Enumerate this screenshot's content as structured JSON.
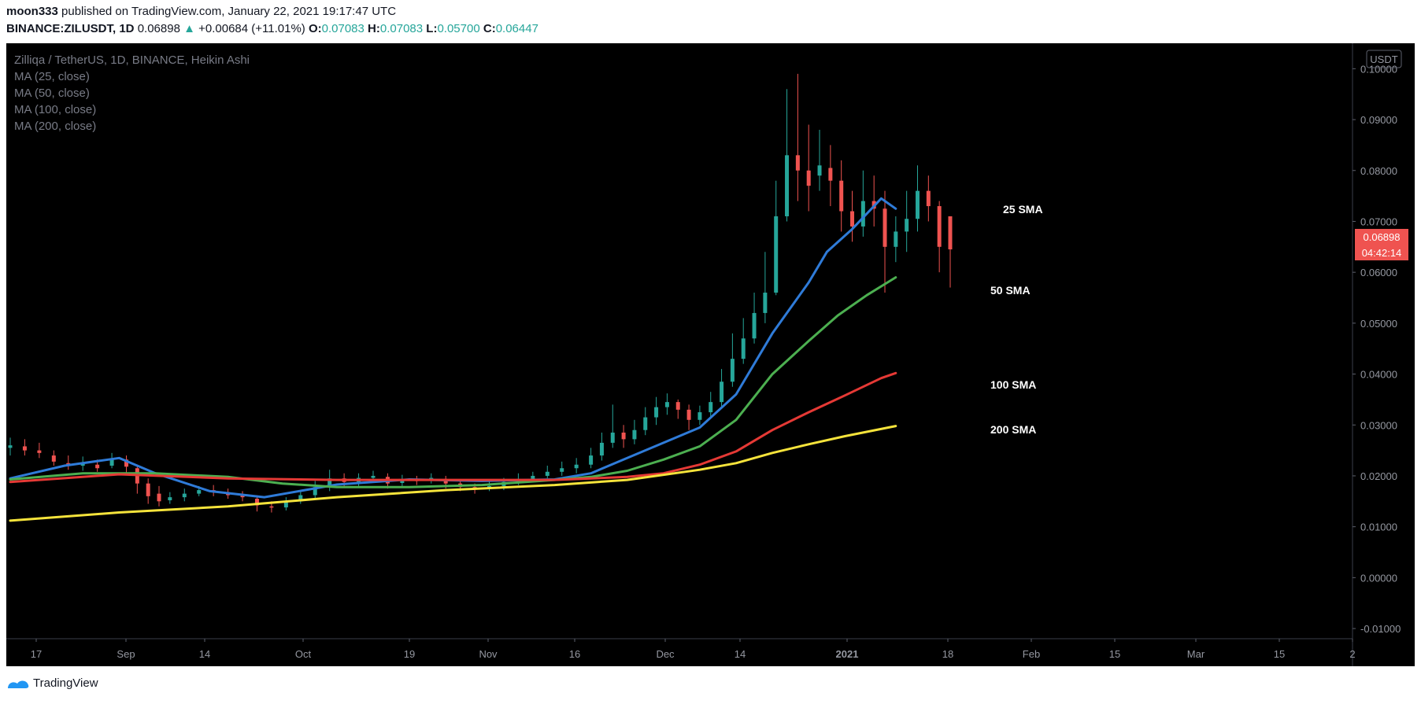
{
  "header": {
    "username": "moon333",
    "published_text": "published on TradingView.com, January 22, 2021 19:17:47 UTC",
    "symbol": "BINANCE:ZILUSDT, 1D",
    "last": "0.06898",
    "change_arrow": "▲",
    "change": "+0.00684 (+11.01%)",
    "o_label": "O:",
    "o_val": "0.07083",
    "h_label": "H:",
    "h_val": "0.07083",
    "l_label": "L:",
    "l_val": "0.05700",
    "c_label": "C:",
    "c_val": "0.06447"
  },
  "legend": {
    "title": "Zilliqa / TetherUS, 1D, BINANCE, Heikin Ashi",
    "ma_lines": [
      "MA (25, close)",
      "MA (50, close)",
      "MA (100, close)",
      "MA (200, close)"
    ]
  },
  "currency_button": "USDT",
  "price_tag": {
    "price": "0.06898",
    "countdown": "04:42:14"
  },
  "footer": {
    "brand": "TradingView"
  },
  "colors": {
    "background": "#000000",
    "up": "#26a69a",
    "down": "#ef5350",
    "sma25": "#2f7bd8",
    "sma50": "#4caf50",
    "sma100": "#e53935",
    "sma200": "#f5e33b"
  },
  "chart_data": {
    "type": "line",
    "candle_style": "heikin ashi",
    "ylim": [
      -0.012,
      0.105
    ],
    "y_ticks": [
      "0.10000",
      "0.09000",
      "0.08000",
      "0.07000",
      "0.06000",
      "0.05000",
      "0.04000",
      "0.03000",
      "0.02000",
      "0.01000",
      "0.00000",
      "-0.01000"
    ],
    "x_ticks": [
      "17",
      "Sep",
      "14",
      "Oct",
      "19",
      "Nov",
      "16",
      "Dec",
      "14",
      "2021",
      "18",
      "Feb",
      "15",
      "Mar",
      "15",
      "2"
    ],
    "annotations": [
      "25 SMA",
      "50 SMA",
      "100 SMA",
      "200 SMA"
    ],
    "series": [
      {
        "name": "MA (25, close)",
        "color_key": "sma25",
        "points": [
          [
            0,
            0.0195
          ],
          [
            15,
            0.022
          ],
          [
            30,
            0.0235
          ],
          [
            40,
            0.0205
          ],
          [
            55,
            0.017
          ],
          [
            70,
            0.0158
          ],
          [
            90,
            0.0183
          ],
          [
            110,
            0.0193
          ],
          [
            130,
            0.019
          ],
          [
            150,
            0.0193
          ],
          [
            160,
            0.0205
          ],
          [
            170,
            0.0235
          ],
          [
            180,
            0.0265
          ],
          [
            190,
            0.0295
          ],
          [
            200,
            0.036
          ],
          [
            210,
            0.048
          ],
          [
            220,
            0.058
          ],
          [
            225,
            0.064
          ],
          [
            232,
            0.0685
          ],
          [
            240,
            0.0745
          ],
          [
            244,
            0.0725
          ]
        ]
      },
      {
        "name": "MA (50, close)",
        "color_key": "sma50",
        "points": [
          [
            0,
            0.0193
          ],
          [
            20,
            0.0205
          ],
          [
            40,
            0.0205
          ],
          [
            60,
            0.0198
          ],
          [
            75,
            0.0185
          ],
          [
            90,
            0.0178
          ],
          [
            110,
            0.0178
          ],
          [
            130,
            0.0182
          ],
          [
            150,
            0.0192
          ],
          [
            160,
            0.0198
          ],
          [
            170,
            0.021
          ],
          [
            180,
            0.0232
          ],
          [
            190,
            0.0258
          ],
          [
            200,
            0.031
          ],
          [
            210,
            0.04
          ],
          [
            220,
            0.0465
          ],
          [
            228,
            0.0515
          ],
          [
            236,
            0.0555
          ],
          [
            244,
            0.059
          ]
        ]
      },
      {
        "name": "MA (100, close)",
        "color_key": "sma100",
        "points": [
          [
            0,
            0.0188
          ],
          [
            30,
            0.0203
          ],
          [
            60,
            0.0195
          ],
          [
            90,
            0.0192
          ],
          [
            120,
            0.0192
          ],
          [
            150,
            0.0192
          ],
          [
            170,
            0.0198
          ],
          [
            180,
            0.0205
          ],
          [
            190,
            0.0222
          ],
          [
            200,
            0.0248
          ],
          [
            210,
            0.029
          ],
          [
            220,
            0.0325
          ],
          [
            230,
            0.0358
          ],
          [
            240,
            0.0392
          ],
          [
            244,
            0.0402
          ]
        ]
      },
      {
        "name": "MA (200, close)",
        "color_key": "sma200",
        "points": [
          [
            0,
            0.0112
          ],
          [
            30,
            0.0128
          ],
          [
            60,
            0.014
          ],
          [
            90,
            0.0158
          ],
          [
            120,
            0.0172
          ],
          [
            150,
            0.0182
          ],
          [
            170,
            0.0192
          ],
          [
            190,
            0.0212
          ],
          [
            200,
            0.0225
          ],
          [
            210,
            0.0245
          ],
          [
            220,
            0.0262
          ],
          [
            230,
            0.0278
          ],
          [
            244,
            0.0298
          ]
        ]
      }
    ],
    "candles": [
      [
        0,
        0.0255,
        0.026,
        0.0275,
        0.024
      ],
      [
        4,
        0.0258,
        0.025,
        0.0272,
        0.024
      ],
      [
        8,
        0.025,
        0.0245,
        0.0265,
        0.0235
      ],
      [
        12,
        0.024,
        0.0228,
        0.025,
        0.022
      ],
      [
        16,
        0.0225,
        0.022,
        0.024,
        0.0212
      ],
      [
        20,
        0.022,
        0.0225,
        0.0238,
        0.021
      ],
      [
        24,
        0.0222,
        0.0215,
        0.0232,
        0.0208
      ],
      [
        28,
        0.022,
        0.0232,
        0.0245,
        0.0215
      ],
      [
        32,
        0.0232,
        0.0218,
        0.024,
        0.0205
      ],
      [
        35,
        0.0215,
        0.0185,
        0.0222,
        0.0165
      ],
      [
        38,
        0.0185,
        0.016,
        0.0195,
        0.0145
      ],
      [
        41,
        0.0165,
        0.015,
        0.018,
        0.014
      ],
      [
        44,
        0.0152,
        0.0158,
        0.0168,
        0.0145
      ],
      [
        48,
        0.0158,
        0.0165,
        0.0175,
        0.015
      ],
      [
        52,
        0.0165,
        0.0172,
        0.018,
        0.016
      ],
      [
        56,
        0.0172,
        0.0168,
        0.0182,
        0.016
      ],
      [
        60,
        0.0168,
        0.0162,
        0.0175,
        0.0155
      ],
      [
        64,
        0.0162,
        0.0158,
        0.017,
        0.015
      ],
      [
        68,
        0.0155,
        0.0142,
        0.0162,
        0.013
      ],
      [
        72,
        0.014,
        0.0138,
        0.015,
        0.0128
      ],
      [
        76,
        0.0138,
        0.015,
        0.0158,
        0.0132
      ],
      [
        80,
        0.015,
        0.0162,
        0.017,
        0.0145
      ],
      [
        84,
        0.0162,
        0.0178,
        0.019,
        0.0155
      ],
      [
        88,
        0.0178,
        0.0195,
        0.0212,
        0.017
      ],
      [
        92,
        0.0195,
        0.0188,
        0.0205,
        0.0178
      ],
      [
        96,
        0.0188,
        0.0196,
        0.0205,
        0.018
      ],
      [
        100,
        0.0196,
        0.02,
        0.021,
        0.0188
      ],
      [
        104,
        0.0198,
        0.0185,
        0.0205,
        0.0175
      ],
      [
        108,
        0.0186,
        0.0192,
        0.0202,
        0.018
      ],
      [
        112,
        0.0192,
        0.019,
        0.02,
        0.0182
      ],
      [
        116,
        0.019,
        0.0196,
        0.0205,
        0.0185
      ],
      [
        120,
        0.0194,
        0.0185,
        0.02,
        0.0175
      ],
      [
        124,
        0.0185,
        0.0178,
        0.0192,
        0.017
      ],
      [
        128,
        0.0178,
        0.0175,
        0.0185,
        0.0165
      ],
      [
        132,
        0.0175,
        0.018,
        0.019,
        0.017
      ],
      [
        136,
        0.018,
        0.0188,
        0.0196,
        0.0172
      ],
      [
        140,
        0.0188,
        0.0194,
        0.0205,
        0.0182
      ],
      [
        144,
        0.0194,
        0.02,
        0.0208,
        0.0188
      ],
      [
        148,
        0.02,
        0.0208,
        0.022,
        0.0195
      ],
      [
        152,
        0.0208,
        0.0215,
        0.0228,
        0.02
      ],
      [
        156,
        0.0215,
        0.0222,
        0.0235,
        0.0205
      ],
      [
        160,
        0.0222,
        0.024,
        0.0255,
        0.0215
      ],
      [
        163,
        0.024,
        0.0265,
        0.0285,
        0.023
      ],
      [
        166,
        0.0265,
        0.0285,
        0.034,
        0.0255
      ],
      [
        169,
        0.0285,
        0.0272,
        0.03,
        0.0255
      ],
      [
        172,
        0.0272,
        0.029,
        0.031,
        0.0262
      ],
      [
        175,
        0.029,
        0.0315,
        0.0335,
        0.028
      ],
      [
        178,
        0.0315,
        0.0335,
        0.0355,
        0.03
      ],
      [
        181,
        0.0335,
        0.0345,
        0.0362,
        0.032
      ],
      [
        184,
        0.0345,
        0.033,
        0.035,
        0.0312
      ],
      [
        187,
        0.033,
        0.031,
        0.034,
        0.029
      ],
      [
        190,
        0.031,
        0.0325,
        0.0338,
        0.03
      ],
      [
        193,
        0.0325,
        0.0345,
        0.0365,
        0.0315
      ],
      [
        196,
        0.0345,
        0.0385,
        0.041,
        0.0335
      ],
      [
        199,
        0.0385,
        0.043,
        0.048,
        0.0375
      ],
      [
        202,
        0.043,
        0.047,
        0.051,
        0.042
      ],
      [
        205,
        0.047,
        0.052,
        0.056,
        0.046
      ],
      [
        208,
        0.052,
        0.056,
        0.064,
        0.05
      ],
      [
        211,
        0.056,
        0.071,
        0.078,
        0.0555
      ],
      [
        214,
        0.071,
        0.083,
        0.096,
        0.07
      ],
      [
        217,
        0.083,
        0.08,
        0.099,
        0.074
      ],
      [
        220,
        0.08,
        0.077,
        0.089,
        0.072
      ],
      [
        223,
        0.079,
        0.081,
        0.088,
        0.076
      ],
      [
        226,
        0.0805,
        0.078,
        0.085,
        0.073
      ],
      [
        229,
        0.078,
        0.072,
        0.082,
        0.068
      ],
      [
        232,
        0.072,
        0.069,
        0.076,
        0.066
      ],
      [
        235,
        0.069,
        0.074,
        0.08,
        0.067
      ],
      [
        238,
        0.074,
        0.0725,
        0.079,
        0.069
      ],
      [
        241,
        0.0725,
        0.065,
        0.076,
        0.056
      ],
      [
        244,
        0.065,
        0.068,
        0.071,
        0.062
      ],
      [
        247,
        0.068,
        0.0705,
        0.076,
        0.064
      ],
      [
        250,
        0.0705,
        0.076,
        0.081,
        0.068
      ],
      [
        253,
        0.076,
        0.073,
        0.079,
        0.07
      ],
      [
        256,
        0.073,
        0.065,
        0.074,
        0.06
      ],
      [
        259,
        0.071,
        0.0645,
        0.071,
        0.057
      ]
    ]
  }
}
